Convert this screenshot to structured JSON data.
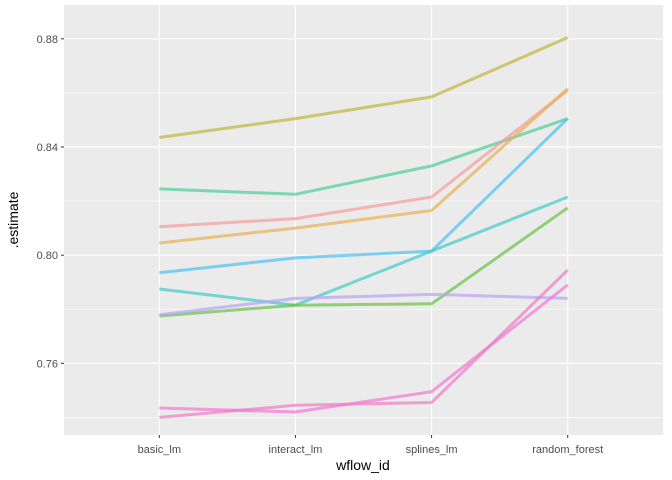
{
  "chart_data": {
    "type": "line",
    "xlabel": "wflow_id",
    "ylabel": ".estimate",
    "categories": [
      "basic_lm",
      "interact_lm",
      "splines_lm",
      "random_forest"
    ],
    "ylim": [
      0.7335,
      0.8925
    ],
    "yticks": [
      0.76,
      0.8,
      0.84,
      0.88
    ],
    "ytick_labels": [
      "0.76",
      "0.80",
      "0.84",
      "0.88"
    ],
    "grid": true,
    "legend": "none",
    "series": [
      {
        "color": "#c2b63e",
        "values": [
          0.8435,
          0.8505,
          0.8585,
          0.8805
        ]
      },
      {
        "color": "#4dcf9a",
        "values": [
          0.8245,
          0.8225,
          0.833,
          0.8505
        ]
      },
      {
        "color": "#f59c9c",
        "values": [
          0.8105,
          0.8135,
          0.8215,
          0.861
        ]
      },
      {
        "color": "#e7b155",
        "values": [
          0.8045,
          0.81,
          0.8165,
          0.8615
        ]
      },
      {
        "color": "#4fc2ee",
        "values": [
          0.7935,
          0.799,
          0.8015,
          0.8505
        ]
      },
      {
        "color": "#45cbc8",
        "values": [
          0.7875,
          0.7815,
          0.8015,
          0.8215
        ]
      },
      {
        "color": "#6cc24a",
        "values": [
          0.7775,
          0.7815,
          0.782,
          0.8175
        ]
      },
      {
        "color": "#b7a5f2",
        "values": [
          0.778,
          0.784,
          0.7855,
          0.784
        ]
      },
      {
        "color": "#f07ad5",
        "values": [
          0.7435,
          0.742,
          0.7495,
          0.789
        ]
      },
      {
        "color": "#ee7ec4",
        "values": [
          0.74,
          0.7445,
          0.7455,
          0.7945
        ]
      }
    ]
  }
}
